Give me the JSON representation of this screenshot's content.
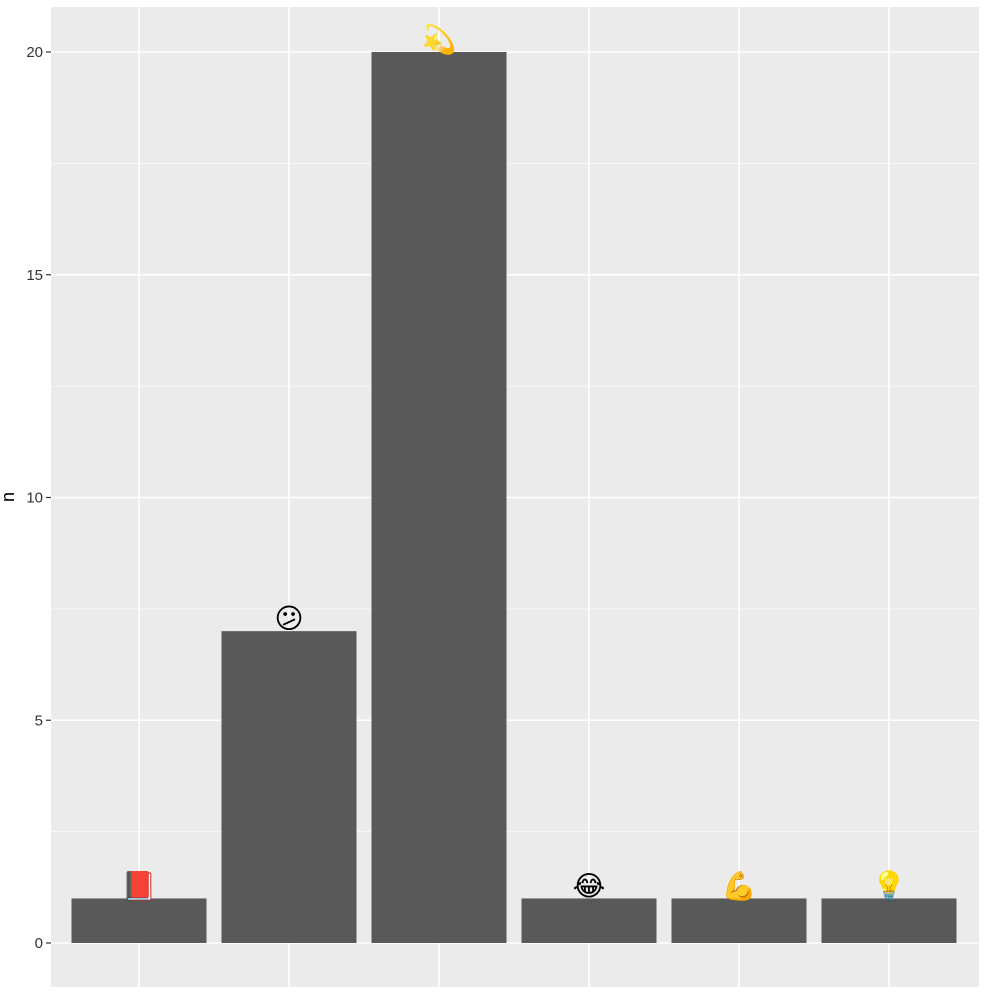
{
  "chart_data": {
    "type": "bar",
    "categories": [
      "📕",
      "😕",
      "💫",
      "😂",
      "💪",
      "💡"
    ],
    "values": [
      1,
      7,
      20,
      1,
      1,
      1
    ],
    "bar_labels": [
      "📕",
      "😕",
      "💫",
      "😂",
      "💪",
      "💡"
    ],
    "ylabel": "n",
    "xlabel": "",
    "yticks": [
      0,
      5,
      10,
      15,
      20
    ],
    "ylim": [
      0,
      21
    ],
    "grid": true,
    "colors": {
      "panel": "#ebebeb",
      "grid": "#ffffff",
      "bar": "#595959",
      "tick": "#333333"
    }
  }
}
